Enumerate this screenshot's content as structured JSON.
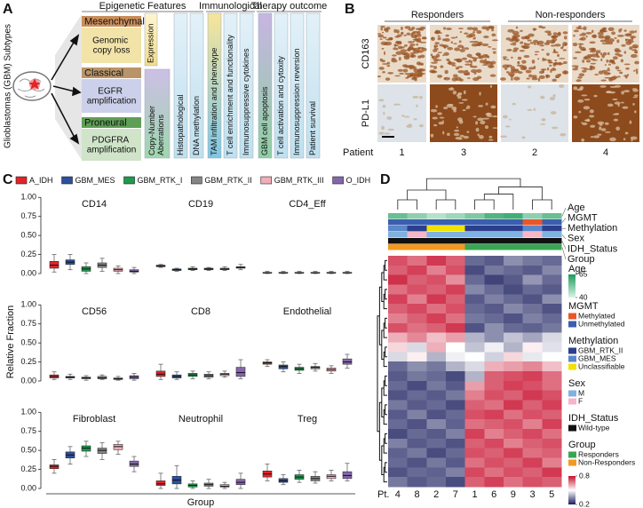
{
  "figure": {
    "A": {
      "label": "A",
      "side_title": "Glioblastomas (GBM) Subtypes",
      "subtypes": [
        {
          "name": "Mesenchymal",
          "feature": "Genomic copy loss"
        },
        {
          "name": "Classical",
          "feature": "EGFR amplification"
        },
        {
          "name": "Proneural",
          "feature": "PDGFRA amplification"
        }
      ],
      "sections": [
        {
          "title": "Epigenetic Features",
          "columns": [
            "Expression",
            "Copy-Number Aberrations",
            "Histopathological",
            "DNA methylation"
          ]
        },
        {
          "title": "Immunological",
          "columns": [
            "TAM infiltration and phenotype",
            "T cell enrichment and functionality",
            "Immunosuppressive cytokines"
          ]
        },
        {
          "title": "Therapy outcome",
          "columns": [
            "GBM cell apoptosis",
            "T cell activation and cytoxity",
            "Immunosuppression reversion",
            "Patient survival"
          ]
        }
      ]
    },
    "B": {
      "label": "B",
      "groups": [
        "Responders",
        "Non-responders"
      ],
      "rows": [
        "CD163",
        "PD-L1"
      ],
      "patient_label": "Patient",
      "patients": [
        "1",
        "3",
        "2",
        "4"
      ]
    }
  },
  "chart_data": [
    {
      "type": "box",
      "label": "C",
      "ylabel": "Relative Fraction",
      "xlabel": "Group",
      "ylim": [
        0,
        1.05
      ],
      "yticks": [
        {
          "value": 0,
          "label": "0.00"
        },
        0.25,
        {
          "value": 0.5,
          "label": "0.50"
        },
        0.75,
        {
          "value": 1,
          "label": "1.00"
        }
      ],
      "series": [
        {
          "name": "A_IDH",
          "color": "#e3232a"
        },
        {
          "name": "GBM_MES",
          "color": "#2c4f9e"
        },
        {
          "name": "GBM_RTK_I",
          "color": "#1d9a4e"
        },
        {
          "name": "GBM_RTK_II",
          "color": "#858585"
        },
        {
          "name": "GBM_RTK_III",
          "color": "#f2adb9"
        },
        {
          "name": "O_IDH",
          "color": "#8466ad"
        }
      ],
      "panels": [
        {
          "title": "CD14",
          "boxes": [
            [
              0.02,
              0.07,
              0.11,
              0.16,
              0.25
            ],
            [
              0.05,
              0.12,
              0.15,
              0.18,
              0.25
            ],
            [
              0,
              0.03,
              0.06,
              0.09,
              0.14
            ],
            [
              0.03,
              0.08,
              0.11,
              0.14,
              0.2
            ],
            [
              0,
              0.03,
              0.05,
              0.07,
              0.1
            ],
            [
              0,
              0.02,
              0.03,
              0.05,
              0.08
            ]
          ]
        },
        {
          "title": "CD19",
          "boxes": [
            [
              0.08,
              0.09,
              0.1,
              0.11,
              0.12
            ],
            [
              0.03,
              0.04,
              0.05,
              0.06,
              0.07
            ],
            [
              0.04,
              0.05,
              0.06,
              0.07,
              0.09
            ],
            [
              0.04,
              0.05,
              0.06,
              0.07,
              0.08
            ],
            [
              0.04,
              0.05,
              0.06,
              0.07,
              0.09
            ],
            [
              0.05,
              0.07,
              0.08,
              0.09,
              0.12
            ]
          ]
        },
        {
          "title": "CD4_Eff",
          "boxes": [
            [
              0,
              0.005,
              0.01,
              0.015,
              0.03
            ],
            [
              0,
              0.005,
              0.01,
              0.015,
              0.03
            ],
            [
              0,
              0.005,
              0.01,
              0.015,
              0.03
            ],
            [
              0,
              0.005,
              0.01,
              0.015,
              0.03
            ],
            [
              0,
              0.005,
              0.01,
              0.015,
              0.03
            ],
            [
              0,
              0.005,
              0.01,
              0.015,
              0.03
            ]
          ]
        },
        {
          "title": "CD56",
          "boxes": [
            [
              0.02,
              0.04,
              0.06,
              0.08,
              0.12
            ],
            [
              0.02,
              0.04,
              0.05,
              0.06,
              0.09
            ],
            [
              0.01,
              0.03,
              0.04,
              0.05,
              0.07
            ],
            [
              0.02,
              0.03,
              0.04,
              0.06,
              0.08
            ],
            [
              0.01,
              0.02,
              0.03,
              0.04,
              0.06
            ],
            [
              0.01,
              0.03,
              0.05,
              0.07,
              0.1
            ]
          ]
        },
        {
          "title": "CD8",
          "boxes": [
            [
              0.02,
              0.06,
              0.09,
              0.13,
              0.22
            ],
            [
              0.02,
              0.04,
              0.06,
              0.08,
              0.12
            ],
            [
              0.03,
              0.06,
              0.08,
              0.1,
              0.13
            ],
            [
              0.03,
              0.05,
              0.07,
              0.09,
              0.12
            ],
            [
              0.05,
              0.07,
              0.09,
              0.1,
              0.13
            ],
            [
              0.03,
              0.06,
              0.11,
              0.18,
              0.28
            ]
          ]
        },
        {
          "title": "Endothelial",
          "boxes": [
            [
              0.19,
              0.22,
              0.24,
              0.25,
              0.28
            ],
            [
              0.12,
              0.16,
              0.19,
              0.21,
              0.25
            ],
            [
              0.1,
              0.14,
              0.16,
              0.18,
              0.22
            ],
            [
              0.13,
              0.16,
              0.18,
              0.19,
              0.23
            ],
            [
              0.1,
              0.13,
              0.15,
              0.17,
              0.2
            ],
            [
              0.17,
              0.22,
              0.25,
              0.29,
              0.35
            ]
          ]
        },
        {
          "title": "Fibroblast",
          "boxes": [
            [
              0.2,
              0.26,
              0.29,
              0.31,
              0.38
            ],
            [
              0.32,
              0.4,
              0.44,
              0.48,
              0.55
            ],
            [
              0.42,
              0.49,
              0.53,
              0.56,
              0.62
            ],
            [
              0.38,
              0.46,
              0.5,
              0.53,
              0.6
            ],
            [
              0.45,
              0.51,
              0.55,
              0.58,
              0.62
            ],
            [
              0.22,
              0.29,
              0.32,
              0.36,
              0.42
            ]
          ]
        },
        {
          "title": "Neutrophil",
          "boxes": [
            [
              0,
              0.04,
              0.06,
              0.1,
              0.2
            ],
            [
              0,
              0.06,
              0.11,
              0.16,
              0.3
            ],
            [
              0,
              0.02,
              0.04,
              0.06,
              0.1
            ],
            [
              0,
              0.03,
              0.05,
              0.07,
              0.12
            ],
            [
              0,
              0.02,
              0.03,
              0.05,
              0.08
            ],
            [
              0,
              0.05,
              0.08,
              0.12,
              0.2
            ]
          ]
        },
        {
          "title": "Treg",
          "boxes": [
            [
              0.1,
              0.15,
              0.19,
              0.23,
              0.32
            ],
            [
              0.05,
              0.08,
              0.1,
              0.13,
              0.18
            ],
            [
              0.08,
              0.12,
              0.15,
              0.18,
              0.24
            ],
            [
              0.07,
              0.1,
              0.13,
              0.16,
              0.22
            ],
            [
              0.1,
              0.13,
              0.16,
              0.18,
              0.24
            ],
            [
              0.1,
              0.13,
              0.17,
              0.22,
              0.33
            ]
          ]
        }
      ]
    },
    {
      "type": "heatmap",
      "label": "D",
      "xlabel": "Pt.",
      "x": [
        "4",
        "8",
        "2",
        "7",
        "1",
        "6",
        "9",
        "3",
        "5"
      ],
      "color_scale": {
        "lim": [
          0.2,
          0.8
        ],
        "ticks": [
          0.2,
          0.8
        ],
        "colors": [
          "#1b1f5e",
          "#ffffff",
          "#c8102e"
        ]
      },
      "annotations": [
        {
          "name": "Age",
          "values": [
            55,
            50,
            45,
            48,
            52,
            58,
            60,
            50,
            55
          ],
          "lim": [
            40,
            65
          ],
          "ticks": [
            40,
            65
          ],
          "colors": [
            "#d9f3ea",
            "#1f9a5a"
          ]
        },
        {
          "name": "MGMT",
          "values": [
            "Unmethylated",
            "Unmethylated",
            "Unmethylated",
            "Unmethylated",
            "Unmethylated",
            "Unmethylated",
            "Unmethylated",
            "Methylated",
            "Unmethylated"
          ],
          "levels": [
            {
              "name": "Methylated",
              "color": "#e8562a"
            },
            {
              "name": "Unmethylated",
              "color": "#3a5fb0"
            }
          ]
        },
        {
          "name": "Methylation",
          "values": [
            "GBM_MES",
            "GBM_RTK_II",
            "Unclassifiable",
            "Unclassifiable",
            "GBM_RTK_II",
            "GBM_RTK_II",
            "GBM_RTK_II",
            "GBM_MES",
            "GBM_RTK_II"
          ],
          "levels": [
            {
              "name": "GBM_RTK_II",
              "color": "#2b3f8c"
            },
            {
              "name": "GBM_MES",
              "color": "#5b86c8"
            },
            {
              "name": "Unclassifiable",
              "color": "#f2e200"
            }
          ]
        },
        {
          "name": "Sex",
          "values": [
            "M",
            "F",
            "M",
            "M",
            "M",
            "M",
            "M",
            "F",
            "M"
          ],
          "levels": [
            {
              "name": "M",
              "color": "#7fb2e0"
            },
            {
              "name": "F",
              "color": "#f4b6c8"
            }
          ]
        },
        {
          "name": "IDH_Status",
          "values": [
            "Wild-type",
            "Wild-type",
            "Wild-type",
            "Wild-type",
            "Wild-type",
            "Wild-type",
            "Wild-type",
            "Wild-type",
            "Wild-type"
          ],
          "levels": [
            {
              "name": "Wild-type",
              "color": "#111111"
            }
          ]
        },
        {
          "name": "Group",
          "values": [
            "Non-Responders",
            "Non-Responders",
            "Non-Responders",
            "Non-Responders",
            "Responders",
            "Responders",
            "Responders",
            "Responders",
            "Responders"
          ],
          "levels": [
            {
              "name": "Responders",
              "color": "#3aa655"
            },
            {
              "name": "Non-Responders",
              "color": "#f29a1f"
            }
          ]
        }
      ],
      "values": [
        [
          0.72,
          0.68,
          0.75,
          0.7,
          0.3,
          0.28,
          0.35,
          0.32,
          0.3
        ],
        [
          0.7,
          0.74,
          0.66,
          0.72,
          0.26,
          0.32,
          0.3,
          0.28,
          0.34
        ],
        [
          0.76,
          0.7,
          0.72,
          0.64,
          0.3,
          0.25,
          0.28,
          0.36,
          0.3
        ],
        [
          0.68,
          0.72,
          0.7,
          0.74,
          0.34,
          0.3,
          0.26,
          0.3,
          0.28
        ],
        [
          0.74,
          0.66,
          0.75,
          0.7,
          0.28,
          0.33,
          0.3,
          0.27,
          0.35
        ],
        [
          0.7,
          0.73,
          0.68,
          0.72,
          0.3,
          0.28,
          0.34,
          0.31,
          0.27
        ],
        [
          0.66,
          0.7,
          0.74,
          0.68,
          0.32,
          0.3,
          0.27,
          0.33,
          0.3
        ],
        [
          0.72,
          0.68,
          0.7,
          0.75,
          0.27,
          0.35,
          0.3,
          0.29,
          0.32
        ],
        [
          0.6,
          0.65,
          0.58,
          0.62,
          0.4,
          0.35,
          0.42,
          0.38,
          0.45
        ],
        [
          0.55,
          0.45,
          0.6,
          0.5,
          0.42,
          0.48,
          0.4,
          0.52,
          0.46
        ],
        [
          0.45,
          0.52,
          0.4,
          0.48,
          0.5,
          0.44,
          0.55,
          0.47,
          0.5
        ],
        [
          0.3,
          0.35,
          0.32,
          0.4,
          0.45,
          0.6,
          0.62,
          0.65,
          0.58
        ],
        [
          0.28,
          0.32,
          0.3,
          0.26,
          0.4,
          0.7,
          0.72,
          0.74,
          0.68
        ],
        [
          0.3,
          0.26,
          0.32,
          0.28,
          0.62,
          0.7,
          0.74,
          0.72,
          0.68
        ],
        [
          0.27,
          0.3,
          0.28,
          0.32,
          0.66,
          0.72,
          0.7,
          0.75,
          0.72
        ],
        [
          0.32,
          0.28,
          0.3,
          0.26,
          0.7,
          0.68,
          0.75,
          0.7,
          0.74
        ],
        [
          0.28,
          0.33,
          0.27,
          0.3,
          0.72,
          0.74,
          0.68,
          0.72,
          0.7
        ],
        [
          0.3,
          0.27,
          0.34,
          0.29,
          0.68,
          0.7,
          0.72,
          0.66,
          0.74
        ],
        [
          0.26,
          0.3,
          0.28,
          0.33,
          0.74,
          0.66,
          0.7,
          0.73,
          0.68
        ],
        [
          0.33,
          0.28,
          0.3,
          0.27,
          0.7,
          0.73,
          0.66,
          0.7,
          0.72
        ],
        [
          0.29,
          0.32,
          0.26,
          0.3,
          0.72,
          0.7,
          0.74,
          0.68,
          0.7
        ],
        [
          0.3,
          0.27,
          0.32,
          0.28,
          0.68,
          0.72,
          0.7,
          0.74,
          0.66
        ],
        [
          0.27,
          0.3,
          0.29,
          0.33,
          0.73,
          0.68,
          0.72,
          0.7,
          0.75
        ],
        [
          0.32,
          0.28,
          0.3,
          0.26,
          0.7,
          0.74,
          0.68,
          0.72,
          0.7
        ]
      ]
    }
  ]
}
